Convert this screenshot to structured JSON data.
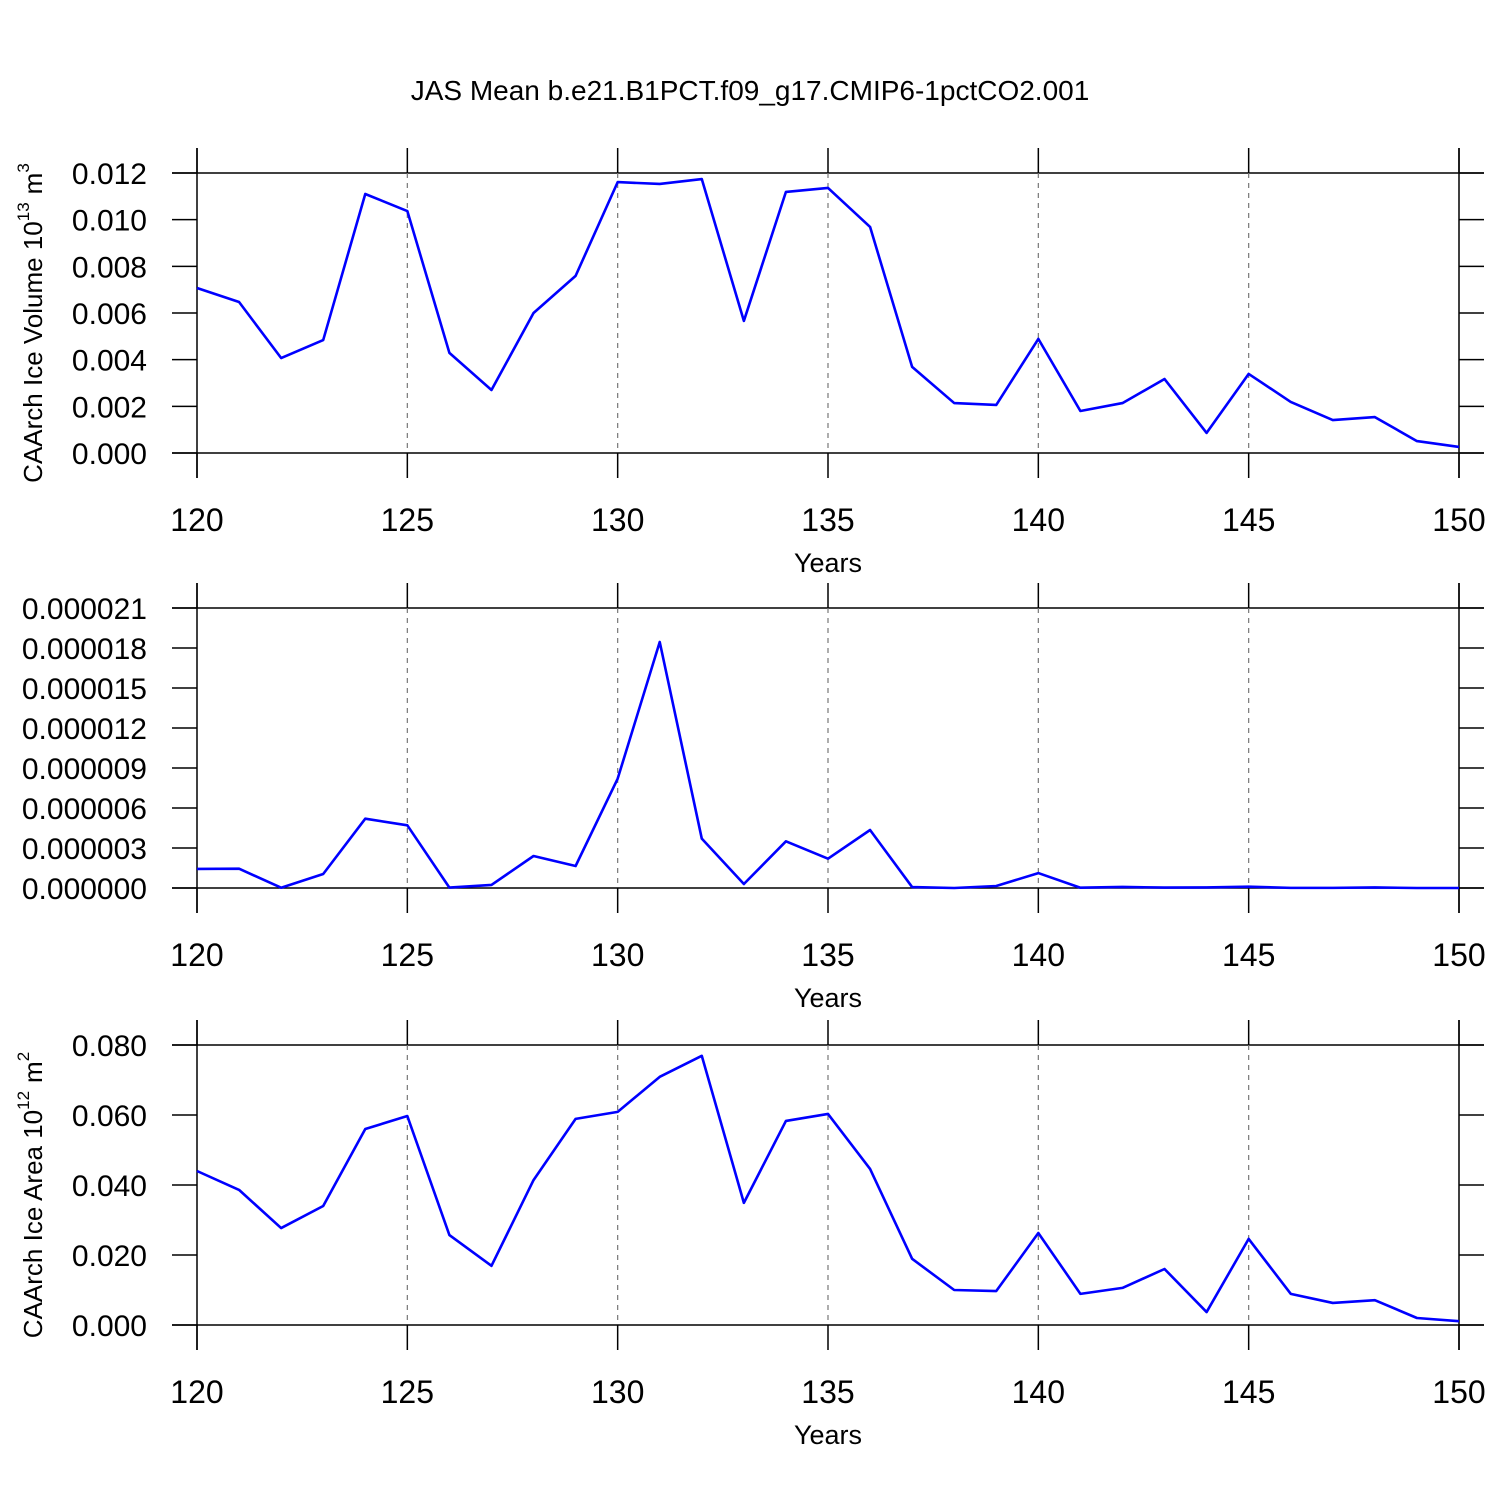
{
  "chart_data": [
    {
      "type": "line",
      "title": "JAS Mean b.e21.B1PCT.f09_g17.CMIP6-1pctCO2.001",
      "ylabel": [
        "CAArch Ice Volume 10",
        "13",
        "m",
        "3"
      ],
      "xlabel": "Years",
      "x": [
        120,
        121,
        122,
        123,
        124,
        125,
        126,
        127,
        128,
        129,
        130,
        131,
        132,
        133,
        134,
        135,
        136,
        137,
        138,
        139,
        140,
        141,
        142,
        143,
        144,
        145,
        146,
        147,
        148,
        149,
        150
      ],
      "values": [
        0.00707,
        0.00647,
        0.00407,
        0.00484,
        0.0111,
        0.01037,
        0.00429,
        0.0027,
        0.006,
        0.00759,
        0.01161,
        0.01153,
        0.01174,
        0.00566,
        0.01119,
        0.01136,
        0.00969,
        0.00369,
        0.00214,
        0.00206,
        0.00489,
        0.0018,
        0.00214,
        0.00317,
        0.00086,
        0.00339,
        0.00219,
        0.00141,
        0.00154,
        0.00051,
        0.00026
      ],
      "color": "#0000ff",
      "grid": "x",
      "xlim": [
        120,
        150
      ],
      "xticks": [
        120,
        125,
        130,
        135,
        140,
        145,
        150
      ],
      "ylim": [
        0,
        0.012
      ],
      "yticks": [
        {
          "value": 0,
          "label": "0.000"
        },
        {
          "value": 0.002,
          "label": "0.002"
        },
        {
          "value": 0.004,
          "label": "0.004"
        },
        {
          "value": 0.006,
          "label": "0.006"
        },
        {
          "value": 0.008,
          "label": "0.008"
        },
        {
          "value": 0.01,
          "label": "0.010"
        },
        {
          "value": 0.012,
          "label": "0.012"
        }
      ]
    },
    {
      "type": "line",
      "xlabel": "Years",
      "x": [
        120,
        121,
        122,
        123,
        124,
        125,
        126,
        127,
        128,
        129,
        130,
        131,
        132,
        133,
        134,
        135,
        136,
        137,
        138,
        139,
        140,
        141,
        142,
        143,
        144,
        145,
        146,
        147,
        148,
        149,
        150
      ],
      "values": [
        1.43e-06,
        1.45e-06,
        2e-08,
        1.05e-06,
        5.2e-06,
        4.7e-06,
        3e-08,
        2.3e-07,
        2.4e-06,
        1.65e-06,
        8.2e-06,
        1.845e-05,
        3.7e-06,
        3e-07,
        3.5e-06,
        2.2e-06,
        4.35e-06,
        7e-08,
        0,
        1.5e-07,
        1.12e-06,
        2e-08,
        8e-08,
        3e-08,
        4e-08,
        1e-07,
        1e-08,
        1e-08,
        4e-08,
        0,
        0
      ],
      "color": "#0000ff",
      "grid": "x",
      "xlim": [
        120,
        150
      ],
      "xticks": [
        120,
        125,
        130,
        135,
        140,
        145,
        150
      ],
      "ylim": [
        0,
        2.1e-05
      ],
      "yticks": [
        {
          "value": 0,
          "label": "0.000000"
        },
        {
          "value": 3e-06,
          "label": "0.000003"
        },
        {
          "value": 6e-06,
          "label": "0.000006"
        },
        {
          "value": 9e-06,
          "label": "0.000009"
        },
        {
          "value": 1.2e-05,
          "label": "0.000012"
        },
        {
          "value": 1.5e-05,
          "label": "0.000015"
        },
        {
          "value": 1.8e-05,
          "label": "0.000018"
        },
        {
          "value": 2.1e-05,
          "label": "0.000021"
        }
      ]
    },
    {
      "type": "line",
      "ylabel": [
        "CAArch Ice Area 10",
        "12",
        "m",
        "2"
      ],
      "xlabel": "Years",
      "x": [
        120,
        121,
        122,
        123,
        124,
        125,
        126,
        127,
        128,
        129,
        130,
        131,
        132,
        133,
        134,
        135,
        136,
        137,
        138,
        139,
        140,
        141,
        142,
        143,
        144,
        145,
        146,
        147,
        148,
        149,
        150
      ],
      "values": [
        0.044,
        0.0386,
        0.0277,
        0.034,
        0.056,
        0.0597,
        0.0257,
        0.0169,
        0.0414,
        0.0589,
        0.0609,
        0.0709,
        0.0769,
        0.0349,
        0.0583,
        0.0603,
        0.0446,
        0.0189,
        0.01,
        0.0097,
        0.0263,
        0.0089,
        0.0106,
        0.016,
        0.0037,
        0.0246,
        0.0089,
        0.0063,
        0.0071,
        0.002,
        0.0011
      ],
      "color": "#0000ff",
      "grid": "x",
      "xlim": [
        120,
        150
      ],
      "xticks": [
        120,
        125,
        130,
        135,
        140,
        145,
        150
      ],
      "ylim": [
        0,
        0.08
      ],
      "yticks": [
        {
          "value": 0,
          "label": "0.000"
        },
        {
          "value": 0.02,
          "label": "0.020"
        },
        {
          "value": 0.04,
          "label": "0.040"
        },
        {
          "value": 0.06,
          "label": "0.060"
        },
        {
          "value": 0.08,
          "label": "0.080"
        }
      ]
    }
  ]
}
